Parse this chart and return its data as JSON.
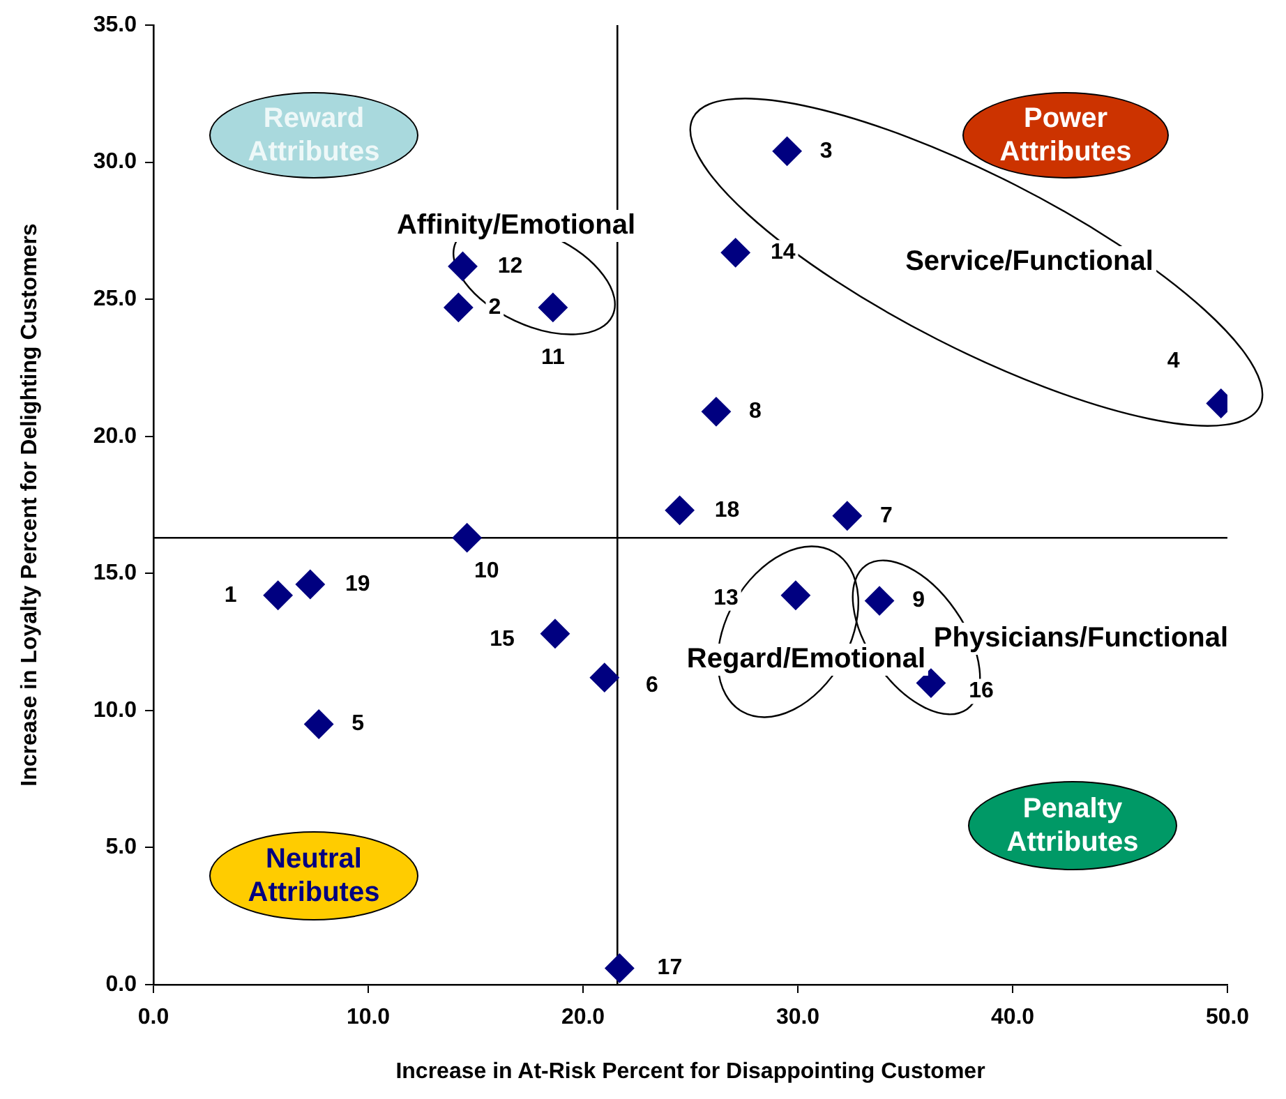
{
  "chart_data": {
    "type": "scatter",
    "xlabel": "Increase in At-Risk Percent for Disappointing Customer",
    "ylabel": "Increase in Loyalty Percent for Delighting Customers",
    "x": [
      5.8,
      14.2,
      29.5,
      49.7,
      7.7,
      21.0,
      32.3,
      26.2,
      33.8,
      14.6,
      18.6,
      14.4,
      29.9,
      27.1,
      18.7,
      36.2,
      21.7,
      24.5,
      7.3
    ],
    "series": [
      {
        "color": "#000080",
        "values": [
          14.2,
          24.7,
          30.4,
          21.2,
          9.5,
          11.2,
          17.1,
          20.9,
          14.0,
          16.3,
          24.7,
          26.2,
          14.2,
          26.7,
          12.8,
          11.0,
          0.6,
          17.3,
          14.6
        ]
      }
    ],
    "marker": "diamond",
    "grid": false,
    "legend": false,
    "xlim": [
      0,
      50
    ],
    "xticks": [
      {
        "value": 0,
        "label": "0.0"
      },
      {
        "value": 10,
        "label": "10.0"
      },
      {
        "value": 20,
        "label": "20.0"
      },
      {
        "value": 30,
        "label": "30.0"
      },
      {
        "value": 40,
        "label": "40.0"
      },
      {
        "value": 50,
        "label": "50.0"
      }
    ],
    "ylim": [
      0,
      35
    ],
    "yticks": [
      {
        "value": 0,
        "label": "0.0"
      },
      {
        "value": 5,
        "label": "5.0"
      },
      {
        "value": 10,
        "label": "10.0"
      },
      {
        "value": 15,
        "label": "15.0"
      },
      {
        "value": 20,
        "label": "20.0"
      },
      {
        "value": 25,
        "label": "25.0"
      },
      {
        "value": 30,
        "label": "30.0"
      },
      {
        "value": 35,
        "label": "35.0"
      }
    ],
    "ref_lines": [
      {
        "axis": "x",
        "value": 21.6,
        "color": "#000000"
      },
      {
        "axis": "y",
        "value": 16.3,
        "color": "#000000"
      }
    ],
    "annotations": [
      "Reward Attributes",
      "Power Attributes",
      "Neutral Attributes",
      "Penalty Attributes",
      "Affinity/Emotional",
      "Service/Functional",
      "Regard/Emotional",
      "Physicians/Functional",
      {
        "text": "1",
        "x": 5.8,
        "y": 14.2
      },
      {
        "text": "2",
        "x": 14.2,
        "y": 24.7
      },
      {
        "text": "3",
        "x": 29.5,
        "y": 30.4
      },
      {
        "text": "4",
        "x": 49.7,
        "y": 21.2
      },
      {
        "text": "5",
        "x": 7.7,
        "y": 9.5
      },
      {
        "text": "6",
        "x": 21.0,
        "y": 11.2
      },
      {
        "text": "7",
        "x": 32.3,
        "y": 17.1
      },
      {
        "text": "8",
        "x": 26.2,
        "y": 20.9
      },
      {
        "text": "9",
        "x": 33.8,
        "y": 14.0
      },
      {
        "text": "10",
        "x": 14.6,
        "y": 16.3
      },
      {
        "text": "11",
        "x": 18.6,
        "y": 24.7
      },
      {
        "text": "12",
        "x": 14.4,
        "y": 26.2
      },
      {
        "text": "13",
        "x": 29.9,
        "y": 14.2
      },
      {
        "text": "14",
        "x": 27.1,
        "y": 26.7
      },
      {
        "text": "15",
        "x": 18.7,
        "y": 12.8
      },
      {
        "text": "16",
        "x": 36.2,
        "y": 11.0
      },
      {
        "text": "17",
        "x": 21.7,
        "y": 0.6
      },
      {
        "text": "18",
        "x": 24.5,
        "y": 17.3
      },
      {
        "text": "19",
        "x": 7.3,
        "y": 14.6
      }
    ]
  }
}
